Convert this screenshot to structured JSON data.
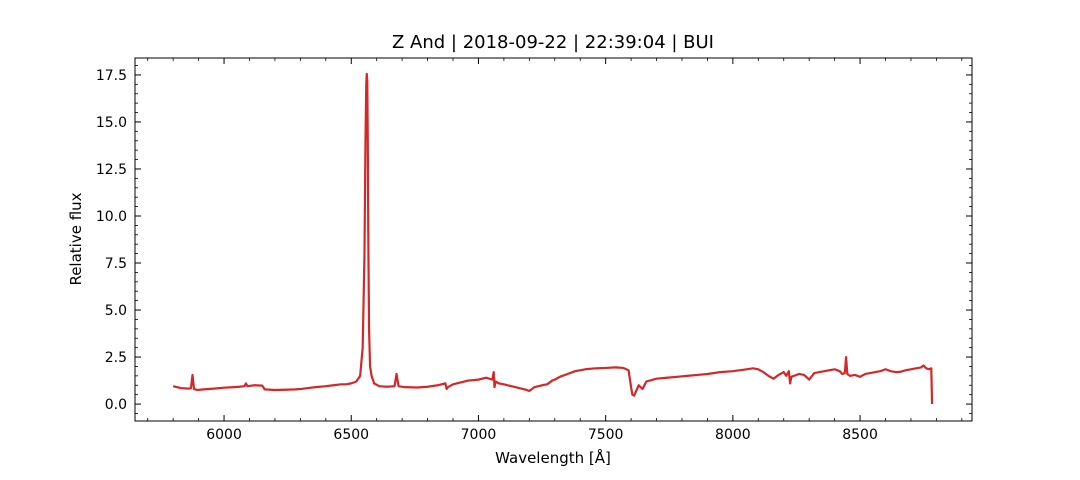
{
  "chart_data": {
    "type": "line",
    "title": "Z And | 2018-09-22 | 22:39:04 | BUI",
    "xlabel": "Wavelength [Å]",
    "ylabel": "Relative flux",
    "xlim": [
      5650,
      8940
    ],
    "ylim": [
      -0.9,
      18.4
    ],
    "xticks": [
      6000,
      6500,
      7000,
      7500,
      8000,
      8500
    ],
    "xtick_labels": [
      "6000",
      "6500",
      "7000",
      "7500",
      "8000",
      "8500"
    ],
    "yticks": [
      0.0,
      2.5,
      5.0,
      7.5,
      10.0,
      12.5,
      15.0,
      17.5
    ],
    "ytick_labels": [
      "0.0",
      "2.5",
      "5.0",
      "7.5",
      "10.0",
      "12.5",
      "15.0",
      "17.5"
    ],
    "grid": false,
    "legend": "none",
    "color": "#d62728",
    "series": [
      {
        "x": [
          5800,
          5830,
          5860,
          5870,
          5876,
          5882,
          5895,
          5920,
          5960,
          6000,
          6040,
          6060,
          6080,
          6086,
          6092,
          6120,
          6150,
          6160,
          6200,
          6240,
          6280,
          6300,
          6330,
          6360,
          6400,
          6430,
          6460,
          6480,
          6500,
          6520,
          6535,
          6545,
          6552,
          6556,
          6559,
          6561,
          6563,
          6565,
          6567,
          6570,
          6574,
          6580,
          6590,
          6610,
          6640,
          6670,
          6678,
          6686,
          6710,
          6760,
          6800,
          6840,
          6870,
          6875,
          6880,
          6900,
          6930,
          6960,
          7000,
          7030,
          7055,
          7060,
          7063,
          7068,
          7080,
          7100,
          7130,
          7160,
          7190,
          7200,
          7220,
          7250,
          7270,
          7290,
          7300,
          7320,
          7350,
          7380,
          7420,
          7460,
          7500,
          7540,
          7570,
          7590,
          7600,
          7605,
          7612,
          7620,
          7630,
          7645,
          7660,
          7700,
          7740,
          7780,
          7820,
          7860,
          7900,
          7950,
          8000,
          8040,
          8080,
          8100,
          8120,
          8140,
          8160,
          8180,
          8200,
          8210,
          8220,
          8225,
          8230,
          8240,
          8260,
          8280,
          8300,
          8320,
          8340,
          8360,
          8380,
          8400,
          8420,
          8430,
          8440,
          8445,
          8450,
          8460,
          8480,
          8500,
          8520,
          8540,
          8560,
          8580,
          8600,
          8620,
          8640,
          8660,
          8680,
          8700,
          8720,
          8740,
          8750,
          8760,
          8770,
          8780,
          8783
        ],
        "y": [
          0.95,
          0.85,
          0.82,
          0.85,
          1.55,
          0.8,
          0.75,
          0.78,
          0.82,
          0.87,
          0.9,
          0.92,
          0.95,
          1.1,
          0.95,
          1.0,
          0.98,
          0.78,
          0.75,
          0.76,
          0.78,
          0.8,
          0.85,
          0.9,
          0.95,
          1.0,
          1.05,
          1.05,
          1.1,
          1.2,
          1.5,
          3.0,
          8.0,
          14.0,
          17.0,
          17.55,
          17.2,
          14.0,
          9.0,
          4.0,
          2.0,
          1.5,
          1.1,
          0.95,
          0.92,
          0.95,
          1.6,
          0.95,
          0.9,
          0.88,
          0.92,
          1.0,
          1.1,
          0.8,
          0.9,
          1.05,
          1.15,
          1.25,
          1.3,
          1.4,
          1.3,
          1.7,
          0.9,
          1.2,
          1.1,
          1.05,
          0.95,
          0.85,
          0.75,
          0.7,
          0.9,
          1.0,
          1.05,
          1.25,
          1.3,
          1.45,
          1.6,
          1.75,
          1.85,
          1.9,
          1.92,
          1.95,
          1.92,
          1.8,
          0.9,
          0.5,
          0.45,
          0.7,
          1.0,
          0.8,
          1.2,
          1.35,
          1.4,
          1.45,
          1.5,
          1.55,
          1.6,
          1.7,
          1.75,
          1.82,
          1.9,
          1.85,
          1.7,
          1.5,
          1.35,
          1.55,
          1.7,
          1.5,
          1.75,
          1.1,
          1.45,
          1.5,
          1.6,
          1.55,
          1.3,
          1.65,
          1.7,
          1.75,
          1.8,
          1.85,
          1.75,
          1.6,
          1.65,
          2.5,
          1.6,
          1.5,
          1.55,
          1.45,
          1.6,
          1.65,
          1.7,
          1.75,
          1.85,
          1.75,
          1.7,
          1.72,
          1.8,
          1.85,
          1.9,
          1.95,
          2.05,
          1.9,
          1.85,
          1.9,
          0.0
        ]
      }
    ]
  }
}
